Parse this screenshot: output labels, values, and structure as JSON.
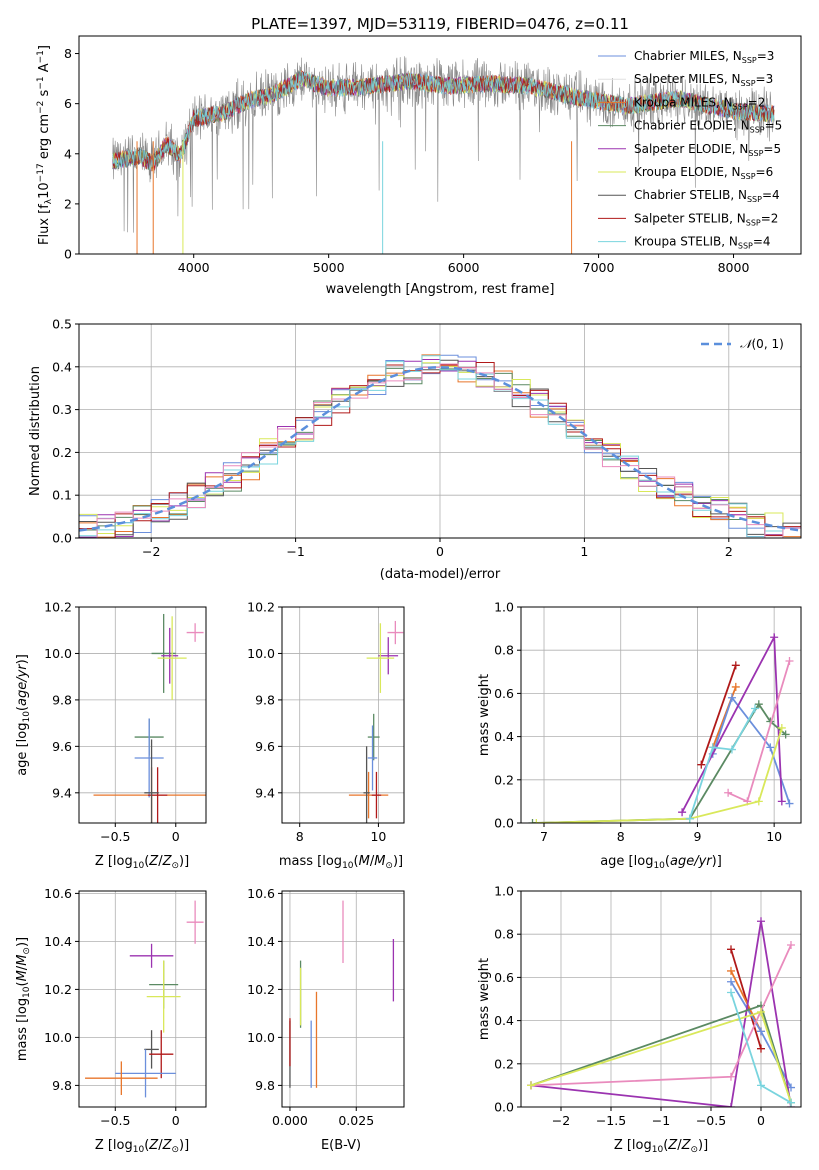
{
  "title": "PLATE=1397, MJD=53119, FIBERID=0476, z=0.11",
  "colors": {
    "chabrier_miles": "#6b8fdc",
    "salpeter_miles": "#e0e0e0",
    "kroupa_miles": "#e8762b",
    "chabrier_elodie": "#5b8a63",
    "salpeter_elodie": "#9b33b0",
    "kroupa_elodie": "#d9e85a",
    "chabrier_stelib": "#555555",
    "salpeter_stelib": "#b01919",
    "kroupa_stelib": "#79d4de",
    "pink": "#e98bbd",
    "normal_fit": "#5b8fdc"
  },
  "chart_data": [
    {
      "type": "line",
      "panel": "spectrum",
      "xlabel": "wavelength [Angstrom, rest frame]",
      "ylabel_parts": [
        "Flux [f",
        "λ",
        "10",
        "−17",
        " erg cm",
        "−2",
        " s",
        "−1",
        " A",
        "−1",
        "]"
      ],
      "xlim": [
        3150,
        8500
      ],
      "ylim": [
        0,
        8.7
      ],
      "xticks": [
        4000,
        5000,
        6000,
        7000,
        8000
      ],
      "yticks": [
        0,
        2,
        4,
        6,
        8
      ],
      "x_range": [
        3400,
        8300
      ],
      "continuum": [
        [
          3400,
          3.7
        ],
        [
          3600,
          3.9
        ],
        [
          3700,
          3.6
        ],
        [
          3800,
          4.4
        ],
        [
          3900,
          3.9
        ],
        [
          4000,
          5.4
        ],
        [
          4200,
          5.6
        ],
        [
          4400,
          6.1
        ],
        [
          4600,
          6.4
        ],
        [
          4800,
          7.0
        ],
        [
          5000,
          6.6
        ],
        [
          5300,
          6.7
        ],
        [
          5600,
          6.9
        ],
        [
          5900,
          6.7
        ],
        [
          6200,
          6.8
        ],
        [
          6500,
          6.7
        ],
        [
          6800,
          6.3
        ],
        [
          7200,
          5.9
        ],
        [
          7600,
          6.2
        ],
        [
          8000,
          5.7
        ],
        [
          8300,
          5.6
        ]
      ],
      "series": [
        {
          "label": [
            "Chabrier MILES, N",
            "SSP",
            "=3"
          ],
          "color": "#6b8fdc"
        },
        {
          "label": [
            "Salpeter MILES, N",
            "SSP",
            "=3"
          ],
          "color": "#e0e0e0"
        },
        {
          "label": [
            "Kroupa MILES, N",
            "SSP",
            "=2"
          ],
          "color": "#e8762b"
        },
        {
          "label": [
            "Chabrier ELODIE, N",
            "SSP",
            "=5"
          ],
          "color": "#5b8a63"
        },
        {
          "label": [
            "Salpeter ELODIE, N",
            "SSP",
            "=5"
          ],
          "color": "#9b33b0"
        },
        {
          "label": [
            "Kroupa ELODIE, N",
            "SSP",
            "=6"
          ],
          "color": "#d9e85a"
        },
        {
          "label": [
            "Chabrier STELIB, N",
            "SSP",
            "=4"
          ],
          "color": "#555555"
        },
        {
          "label": [
            "Salpeter STELIB, N",
            "SSP",
            "=2"
          ],
          "color": "#b01919"
        },
        {
          "label": [
            "Kroupa STELIB, N",
            "SSP",
            "=4"
          ],
          "color": "#79d4de"
        }
      ]
    },
    {
      "type": "line",
      "panel": "histogram",
      "xlabel": "(data-model)/error",
      "ylabel": "Normed distribution",
      "xlim": [
        -2.5,
        2.5
      ],
      "ylim": [
        0,
        0.5
      ],
      "xticks": [
        -2,
        -1,
        0,
        1,
        2
      ],
      "yticks": [
        0.0,
        0.1,
        0.2,
        0.3,
        0.4,
        0.5
      ],
      "grid": true,
      "legend": "N(0,1)",
      "legend_position": "top-right",
      "bins": 40,
      "hist_series_colors": [
        "#6b8fdc",
        "#e8762b",
        "#5b8a63",
        "#9b33b0",
        "#d9e85a",
        "#555555",
        "#b01919",
        "#79d4de",
        "#e98bbd"
      ]
    },
    {
      "type": "scatter",
      "panel": "age_vs_Z",
      "xlabel": "Z [log10(Z/Z⊙)]",
      "ylabel": "age [log10(age/yr)]",
      "xlim": [
        -0.8,
        0.25
      ],
      "ylim": [
        9.27,
        10.2
      ],
      "xticks": [
        -0.5,
        0.0
      ],
      "yticks": [
        9.4,
        9.6,
        9.8,
        10.0,
        10.2
      ],
      "grid": true,
      "points": [
        {
          "x": -0.1,
          "y": 10.0,
          "ex": 0.1,
          "ey": 0.17,
          "color": "#5b8a63"
        },
        {
          "x": -0.05,
          "y": 9.99,
          "ex": 0.07,
          "ey": 0.12,
          "color": "#9b33b0"
        },
        {
          "x": -0.03,
          "y": 9.98,
          "ex": 0.12,
          "ey": 0.18,
          "color": "#d9e85a"
        },
        {
          "x": 0.16,
          "y": 10.09,
          "ex": 0.07,
          "ey": 0.04,
          "color": "#e98bbd"
        },
        {
          "x": -0.22,
          "y": 9.64,
          "ex": 0.12,
          "ey": 0.08,
          "color": "#5b8a63"
        },
        {
          "x": -0.22,
          "y": 9.55,
          "ex": 0.12,
          "ey": 0.17,
          "color": "#6b8fdc"
        },
        {
          "x": -0.2,
          "y": 9.39,
          "ex": 0.48,
          "ey": 0.12,
          "color": "#e8762b"
        },
        {
          "x": -0.15,
          "y": 9.39,
          "ex": 0.08,
          "ey": 0.12,
          "color": "#b01919"
        },
        {
          "x": -0.2,
          "y": 9.4,
          "ex": 0.06,
          "ey": 0.23,
          "color": "#555555"
        }
      ]
    },
    {
      "type": "scatter",
      "panel": "age_vs_mass",
      "xlabel": "mass [log10(M/M⊙)]",
      "ylabel": "",
      "xlim": [
        7.55,
        10.65
      ],
      "ylim": [
        9.27,
        10.2
      ],
      "xticks": [
        8,
        10
      ],
      "yticks": [
        9.4,
        9.6,
        9.8,
        10.0,
        10.2
      ],
      "grid": true,
      "points": [
        {
          "x": 10.25,
          "y": 9.99,
          "ex": 0.25,
          "ey": 0.08,
          "color": "#9b33b0"
        },
        {
          "x": 10.43,
          "y": 10.09,
          "ex": 0.2,
          "ey": 0.05,
          "color": "#e98bbd"
        },
        {
          "x": 10.05,
          "y": 9.98,
          "ex": 0.35,
          "ey": 0.15,
          "color": "#d9e85a"
        },
        {
          "x": 9.88,
          "y": 9.64,
          "ex": 0.15,
          "ey": 0.1,
          "color": "#5b8a63"
        },
        {
          "x": 9.85,
          "y": 9.55,
          "ex": 0.12,
          "ey": 0.14,
          "color": "#6b8fdc"
        },
        {
          "x": 9.75,
          "y": 9.39,
          "ex": 0.5,
          "ey": 0.1,
          "color": "#e8762b"
        },
        {
          "x": 9.95,
          "y": 9.39,
          "ex": 0.12,
          "ey": 0.1,
          "color": "#b01919"
        },
        {
          "x": 9.7,
          "y": 9.4,
          "ex": 0.08,
          "ey": 0.2,
          "color": "#555555"
        }
      ]
    },
    {
      "type": "line",
      "panel": "mass_weight_vs_age",
      "xlabel": "age [log10(age/yr)]",
      "ylabel": "mass weight",
      "xlim": [
        6.7,
        10.35
      ],
      "ylim": [
        0,
        1.0
      ],
      "xticks": [
        7,
        8,
        9,
        10
      ],
      "yticks": [
        0.0,
        0.2,
        0.4,
        0.6,
        0.8,
        1.0
      ],
      "grid": true,
      "series": [
        {
          "color": "#b01919",
          "points": [
            [
              9.05,
              0.27
            ],
            [
              9.5,
              0.73
            ]
          ]
        },
        {
          "color": "#e8762b",
          "points": [
            [
              9.2,
              0.35
            ],
            [
              9.5,
              0.63
            ]
          ]
        },
        {
          "color": "#6b8fdc",
          "points": [
            [
              9.2,
              0.32
            ],
            [
              9.45,
              0.58
            ],
            [
              9.95,
              0.35
            ],
            [
              10.2,
              0.09
            ]
          ]
        },
        {
          "color": "#9b33b0",
          "points": [
            [
              8.8,
              0.05
            ],
            [
              10.0,
              0.86
            ],
            [
              10.1,
              0.1
            ]
          ]
        },
        {
          "color": "#5b8a63",
          "points": [
            [
              6.85,
              0.0
            ],
            [
              8.9,
              0.02
            ],
            [
              9.8,
              0.55
            ],
            [
              9.95,
              0.47
            ],
            [
              10.15,
              0.41
            ]
          ]
        },
        {
          "color": "#e98bbd",
          "points": [
            [
              9.4,
              0.14
            ],
            [
              9.65,
              0.1
            ],
            [
              10.2,
              0.75
            ]
          ]
        },
        {
          "color": "#d9e85a",
          "points": [
            [
              6.9,
              0.0
            ],
            [
              8.9,
              0.02
            ],
            [
              9.8,
              0.1
            ],
            [
              10.1,
              0.44
            ]
          ]
        },
        {
          "color": "#79d4de",
          "points": [
            [
              8.9,
              0.02
            ],
            [
              9.2,
              0.35
            ],
            [
              9.45,
              0.34
            ],
            [
              9.75,
              0.53
            ]
          ]
        }
      ]
    },
    {
      "type": "scatter",
      "panel": "mass_vs_Z",
      "xlabel": "Z [log10(Z/Z⊙)]",
      "ylabel": "mass [log10(M/M⊙)]",
      "xlim": [
        -0.8,
        0.25
      ],
      "ylim": [
        9.71,
        10.61
      ],
      "xticks": [
        -0.5,
        0.0
      ],
      "yticks": [
        9.8,
        10.0,
        10.2,
        10.4,
        10.6
      ],
      "grid": true,
      "points": [
        {
          "x": 0.16,
          "y": 10.48,
          "ex": 0.07,
          "ey": 0.09,
          "color": "#e98bbd"
        },
        {
          "x": -0.2,
          "y": 10.34,
          "ex": 0.18,
          "ey": 0.05,
          "color": "#9b33b0"
        },
        {
          "x": -0.1,
          "y": 10.22,
          "ex": 0.12,
          "ey": 0.1,
          "color": "#5b8a63"
        },
        {
          "x": -0.1,
          "y": 10.17,
          "ex": 0.14,
          "ey": 0.15,
          "color": "#d9e85a"
        },
        {
          "x": -0.2,
          "y": 9.95,
          "ex": 0.06,
          "ey": 0.08,
          "color": "#555555"
        },
        {
          "x": -0.12,
          "y": 9.93,
          "ex": 0.1,
          "ey": 0.1,
          "color": "#b01919"
        },
        {
          "x": -0.25,
          "y": 9.85,
          "ex": 0.25,
          "ey": 0.1,
          "color": "#6b8fdc"
        },
        {
          "x": -0.45,
          "y": 9.83,
          "ex": 0.3,
          "ey": 0.07,
          "color": "#e8762b"
        }
      ]
    },
    {
      "type": "scatter",
      "panel": "mass_vs_ebv",
      "xlabel": "E(B-V)",
      "ylabel": "",
      "xlim": [
        -0.003,
        0.043
      ],
      "ylim": [
        9.71,
        10.61
      ],
      "xticks": [
        0.0,
        0.025
      ],
      "xtick_labels": [
        "0.000",
        "0.025"
      ],
      "yticks": [
        9.8,
        10.0,
        10.2,
        10.4,
        10.6
      ],
      "grid": true,
      "points": [
        {
          "x": 0.0,
          "y": 9.93,
          "ey": 0.14,
          "color": "#555555"
        },
        {
          "x": 0.0,
          "y": 9.98,
          "ey": 0.1,
          "color": "#b01919"
        },
        {
          "x": 0.004,
          "y": 10.18,
          "ey": 0.14,
          "color": "#5b8a63"
        },
        {
          "x": 0.004,
          "y": 10.17,
          "ey": 0.12,
          "color": "#d9e85a"
        },
        {
          "x": 0.008,
          "y": 9.93,
          "ey": 0.14,
          "color": "#6b8fdc"
        },
        {
          "x": 0.01,
          "y": 9.99,
          "ey": 0.2,
          "color": "#e8762b"
        },
        {
          "x": 0.02,
          "y": 10.44,
          "ey": 0.13,
          "color": "#e98bbd"
        },
        {
          "x": 0.039,
          "y": 10.28,
          "ey": 0.13,
          "color": "#9b33b0"
        }
      ]
    },
    {
      "type": "line",
      "panel": "mass_weight_vs_Z",
      "xlabel": "Z [log10(Z/Z⊙)]",
      "ylabel": "mass weight",
      "xlim": [
        -2.4,
        0.4
      ],
      "ylim": [
        0,
        1.0
      ],
      "xticks": [
        -2.0,
        -1.5,
        -1.0,
        -0.5,
        0.0
      ],
      "yticks": [
        0.0,
        0.2,
        0.4,
        0.6,
        0.8,
        1.0
      ],
      "grid": true,
      "series": [
        {
          "color": "#b01919",
          "points": [
            [
              -0.3,
              0.73
            ],
            [
              0.0,
              0.27
            ]
          ]
        },
        {
          "color": "#e8762b",
          "points": [
            [
              -0.3,
              0.63
            ],
            [
              0.0,
              0.35
            ]
          ]
        },
        {
          "color": "#6b8fdc",
          "points": [
            [
              -0.3,
              0.58
            ],
            [
              0.0,
              0.35
            ],
            [
              0.3,
              0.09
            ]
          ]
        },
        {
          "color": "#9b33b0",
          "points": [
            [
              -2.3,
              0.1
            ],
            [
              -0.3,
              0.0
            ],
            [
              0.0,
              0.86
            ],
            [
              0.3,
              0.0
            ]
          ]
        },
        {
          "color": "#5b8a63",
          "points": [
            [
              -2.3,
              0.1
            ],
            [
              0.0,
              0.47
            ],
            [
              0.3,
              0.02
            ]
          ]
        },
        {
          "color": "#e98bbd",
          "points": [
            [
              -2.3,
              0.1
            ],
            [
              -0.3,
              0.14
            ],
            [
              0.3,
              0.75
            ]
          ]
        },
        {
          "color": "#d9e85a",
          "points": [
            [
              -2.3,
              0.1
            ],
            [
              0.0,
              0.44
            ],
            [
              0.3,
              0.02
            ]
          ]
        },
        {
          "color": "#79d4de",
          "points": [
            [
              -0.3,
              0.53
            ],
            [
              0.0,
              0.1
            ],
            [
              0.3,
              0.02
            ]
          ]
        }
      ]
    }
  ]
}
